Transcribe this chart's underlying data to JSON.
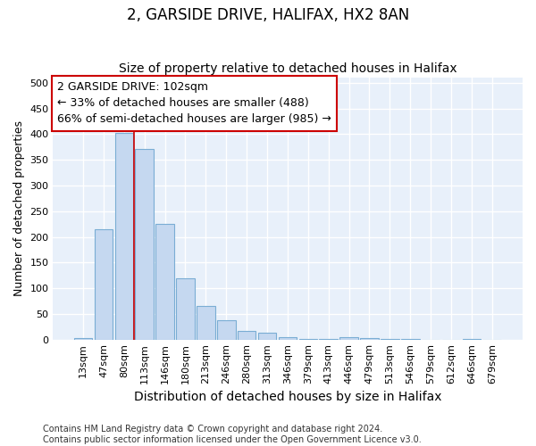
{
  "title1": "2, GARSIDE DRIVE, HALIFAX, HX2 8AN",
  "title2": "Size of property relative to detached houses in Halifax",
  "xlabel": "Distribution of detached houses by size in Halifax",
  "ylabel": "Number of detached properties",
  "categories": [
    "13sqm",
    "47sqm",
    "80sqm",
    "113sqm",
    "146sqm",
    "180sqm",
    "213sqm",
    "246sqm",
    "280sqm",
    "313sqm",
    "346sqm",
    "379sqm",
    "413sqm",
    "446sqm",
    "479sqm",
    "513sqm",
    "546sqm",
    "579sqm",
    "612sqm",
    "646sqm",
    "679sqm"
  ],
  "values": [
    4,
    215,
    403,
    372,
    226,
    120,
    65,
    38,
    18,
    13,
    5,
    2,
    2,
    5,
    4,
    2,
    2,
    0,
    0,
    2,
    0
  ],
  "bar_color": "#c5d8f0",
  "bar_edge_color": "#7aadd4",
  "bg_color": "#e8f0fa",
  "grid_color": "#ffffff",
  "vline_x_index": 2.5,
  "vline_color": "#cc0000",
  "annotation_line1": "2 GARSIDE DRIVE: 102sqm",
  "annotation_line2": "← 33% of detached houses are smaller (488)",
  "annotation_line3": "66% of semi-detached houses are larger (985) →",
  "annotation_box_color": "#ffffff",
  "annotation_box_edge": "#cc0000",
  "ylim": [
    0,
    510
  ],
  "yticks": [
    0,
    50,
    100,
    150,
    200,
    250,
    300,
    350,
    400,
    450,
    500
  ],
  "footer": "Contains HM Land Registry data © Crown copyright and database right 2024.\nContains public sector information licensed under the Open Government Licence v3.0.",
  "title1_fontsize": 12,
  "title2_fontsize": 10,
  "xlabel_fontsize": 10,
  "ylabel_fontsize": 9,
  "tick_fontsize": 8,
  "annotation_fontsize": 9,
  "footer_fontsize": 7,
  "fig_bg": "#ffffff"
}
